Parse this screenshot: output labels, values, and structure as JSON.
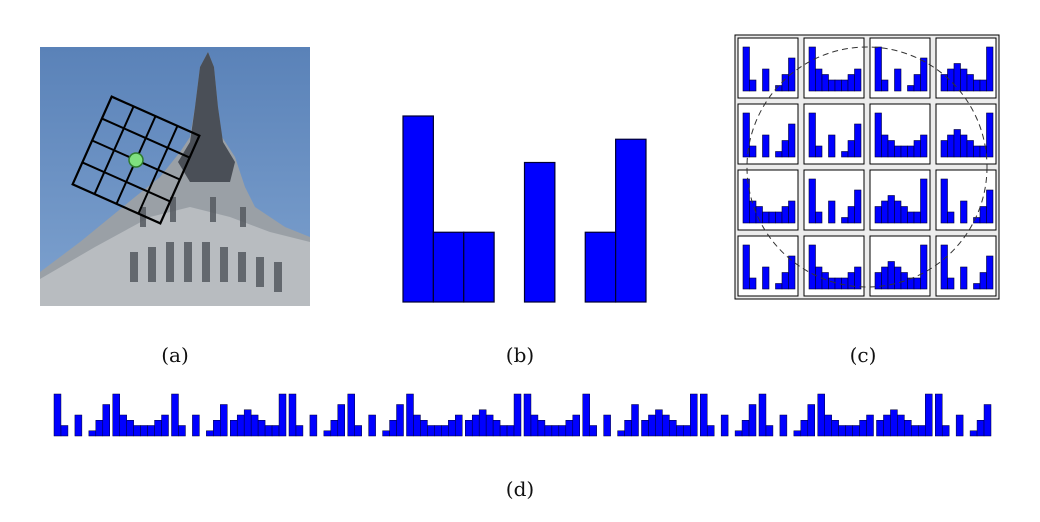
{
  "captions": {
    "a": "(a)",
    "b": "(b)",
    "c": "(c)",
    "d": "(d)"
  },
  "colors": {
    "bar_fill": "#0000ff",
    "bar_stroke": "#000033",
    "keypoint": "#7fe07f",
    "grid": "#000000",
    "sky": "#5f86b8"
  },
  "panel_a": {
    "image": "photo-of-building-top",
    "grid_cells": 4,
    "keypoint_icon": "keypoint-dot"
  },
  "panel_b": {
    "histogram": [
      8,
      3,
      3,
      0,
      6,
      0,
      3,
      7
    ]
  },
  "panel_c": {
    "grid": [
      4,
      4
    ],
    "cells": [
      [
        [
          8,
          2,
          0,
          4,
          0,
          1,
          3,
          6
        ],
        [
          8,
          4,
          3,
          2,
          2,
          2,
          3,
          4
        ],
        [
          8,
          2,
          0,
          4,
          0,
          1,
          3,
          6
        ],
        [
          3,
          4,
          5,
          4,
          3,
          2,
          2,
          8
        ]
      ],
      [
        [
          8,
          2,
          0,
          4,
          0,
          1,
          3,
          6
        ],
        [
          8,
          2,
          0,
          4,
          0,
          1,
          3,
          6
        ],
        [
          8,
          4,
          3,
          2,
          2,
          2,
          3,
          4
        ],
        [
          3,
          4,
          5,
          4,
          3,
          2,
          2,
          8
        ]
      ],
      [
        [
          8,
          4,
          3,
          2,
          2,
          2,
          3,
          4
        ],
        [
          8,
          2,
          0,
          4,
          0,
          1,
          3,
          6
        ],
        [
          3,
          4,
          5,
          4,
          3,
          2,
          2,
          8
        ],
        [
          8,
          2,
          0,
          4,
          0,
          1,
          3,
          6
        ]
      ],
      [
        [
          8,
          2,
          0,
          4,
          0,
          1,
          3,
          6
        ],
        [
          8,
          4,
          3,
          2,
          2,
          2,
          3,
          4
        ],
        [
          3,
          4,
          5,
          4,
          3,
          2,
          2,
          8
        ],
        [
          8,
          2,
          0,
          4,
          0,
          1,
          3,
          6
        ]
      ]
    ],
    "gaussian_window": "dashed-circle"
  }
}
